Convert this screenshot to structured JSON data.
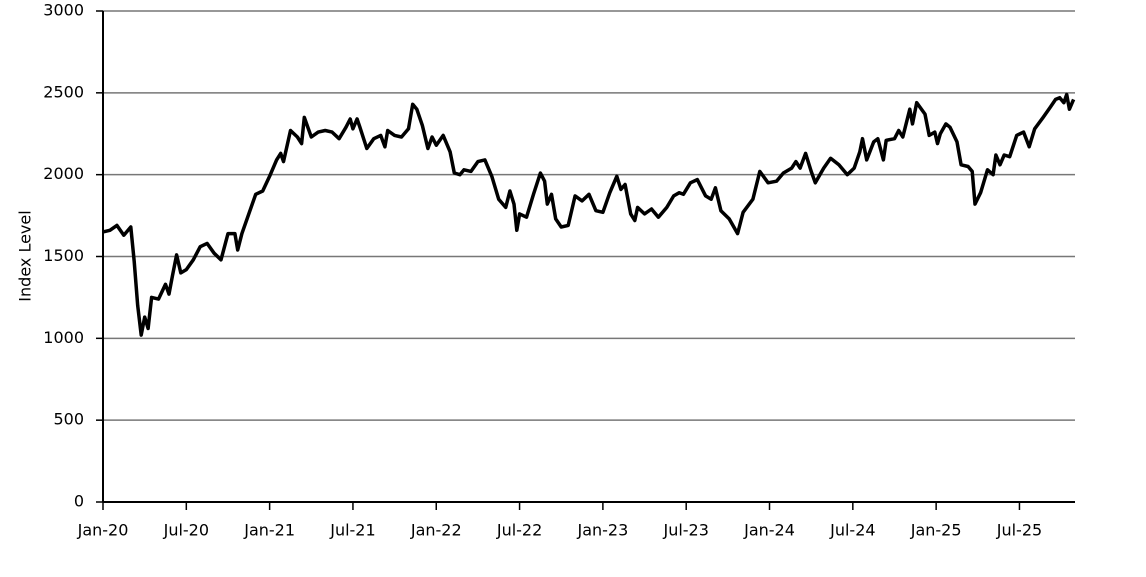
{
  "chart_data": {
    "type": "line",
    "y_label": "Index Level",
    "color": "#000000",
    "grid": true,
    "xlim": [
      0,
      70
    ],
    "ylim": [
      0,
      3000
    ],
    "xticks": [
      {
        "value": 0,
        "label": "Jan-20"
      },
      {
        "value": 6,
        "label": "Jul-20"
      },
      {
        "value": 12,
        "label": "Jan-21"
      },
      {
        "value": 18,
        "label": "Jul-21"
      },
      {
        "value": 24,
        "label": "Jan-22"
      },
      {
        "value": 30,
        "label": "Jul-22"
      },
      {
        "value": 36,
        "label": "Jan-23"
      },
      {
        "value": 42,
        "label": "Jul-23"
      },
      {
        "value": 48,
        "label": "Jan-24"
      },
      {
        "value": 54,
        "label": "Jul-24"
      },
      {
        "value": 60,
        "label": "Jan-25"
      },
      {
        "value": 66,
        "label": "Jul-25"
      }
    ],
    "yticks": [
      0,
      500,
      1000,
      1500,
      2000,
      2500,
      3000
    ],
    "x": [
      0,
      0.5,
      1,
      1.5,
      2,
      2.25,
      2.5,
      2.75,
      3,
      3.25,
      3.5,
      4,
      4.5,
      4.75,
      5,
      5.3,
      5.6,
      6,
      6.5,
      7,
      7.5,
      8,
      8.5,
      9,
      9.5,
      9.7,
      10,
      10.5,
      11,
      11.5,
      12,
      12.5,
      12.8,
      13,
      13.5,
      14,
      14.3,
      14.5,
      15,
      15.5,
      16,
      16.5,
      17,
      17.5,
      17.8,
      18,
      18.3,
      18.5,
      19,
      19.5,
      20,
      20.3,
      20.5,
      21,
      21.5,
      22,
      22.3,
      22.6,
      23,
      23.4,
      23.7,
      24,
      24.5,
      25,
      25.3,
      25.7,
      26,
      26.5,
      27,
      27.5,
      28,
      28.5,
      29,
      29.3,
      29.6,
      29.8,
      30,
      30.5,
      31,
      31.5,
      31.8,
      32,
      32.3,
      32.6,
      33,
      33.5,
      34,
      34.5,
      35,
      35.5,
      36,
      36.5,
      37,
      37.3,
      37.6,
      38,
      38.3,
      38.5,
      39,
      39.5,
      40,
      40.6,
      41.1,
      41.5,
      41.8,
      42.3,
      42.8,
      43.4,
      43.8,
      44.1,
      44.5,
      45.1,
      45.7,
      46.1,
      46.8,
      47.3,
      47.9,
      48.5,
      49.0,
      49.6,
      49.9,
      50.2,
      50.6,
      51.0,
      51.3,
      51.9,
      52.4,
      53.0,
      53.6,
      54.1,
      54.5,
      54.7,
      55.0,
      55.5,
      55.8,
      56.2,
      56.4,
      57.0,
      57.3,
      57.6,
      58.1,
      58.3,
      58.6,
      59.2,
      59.5,
      59.9,
      60.1,
      60.3,
      60.7,
      61.0,
      61.5,
      61.8,
      62.3,
      62.6,
      62.8,
      63.2,
      63.7,
      64.1,
      64.3,
      64.6,
      64.9,
      65.3,
      65.8,
      66.3,
      66.7,
      67.1,
      67.7,
      68.2,
      68.6,
      68.9,
      69.2,
      69.4,
      69.6,
      69.9
    ],
    "values": [
      1650,
      1660,
      1690,
      1630,
      1680,
      1470,
      1200,
      1020,
      1130,
      1060,
      1250,
      1240,
      1330,
      1270,
      1380,
      1510,
      1400,
      1420,
      1480,
      1560,
      1580,
      1520,
      1480,
      1640,
      1640,
      1540,
      1640,
      1760,
      1880,
      1900,
      1990,
      2090,
      2130,
      2080,
      2270,
      2230,
      2190,
      2350,
      2230,
      2260,
      2270,
      2260,
      2220,
      2290,
      2340,
      2280,
      2340,
      2290,
      2160,
      2220,
      2240,
      2170,
      2270,
      2240,
      2230,
      2280,
      2430,
      2400,
      2300,
      2160,
      2230,
      2180,
      2240,
      2140,
      2010,
      2000,
      2030,
      2020,
      2080,
      2090,
      1990,
      1850,
      1800,
      1900,
      1820,
      1660,
      1760,
      1740,
      1880,
      2010,
      1960,
      1820,
      1880,
      1730,
      1680,
      1690,
      1870,
      1840,
      1880,
      1780,
      1770,
      1890,
      1990,
      1910,
      1940,
      1760,
      1720,
      1800,
      1760,
      1790,
      1740,
      1800,
      1870,
      1890,
      1880,
      1950,
      1970,
      1870,
      1850,
      1920,
      1780,
      1730,
      1640,
      1770,
      1850,
      2020,
      1950,
      1960,
      2010,
      2040,
      2080,
      2040,
      2130,
      2020,
      1950,
      2040,
      2100,
      2060,
      2000,
      2040,
      2140,
      2220,
      2090,
      2200,
      2220,
      2090,
      2210,
      2220,
      2270,
      2230,
      2400,
      2310,
      2440,
      2370,
      2240,
      2260,
      2190,
      2250,
      2310,
      2290,
      2200,
      2060,
      2050,
      2020,
      1820,
      1890,
      2030,
      2000,
      2120,
      2060,
      2120,
      2110,
      2240,
      2260,
      2170,
      2280,
      2350,
      2410,
      2460,
      2470,
      2440,
      2490,
      2400,
      2460
    ]
  }
}
